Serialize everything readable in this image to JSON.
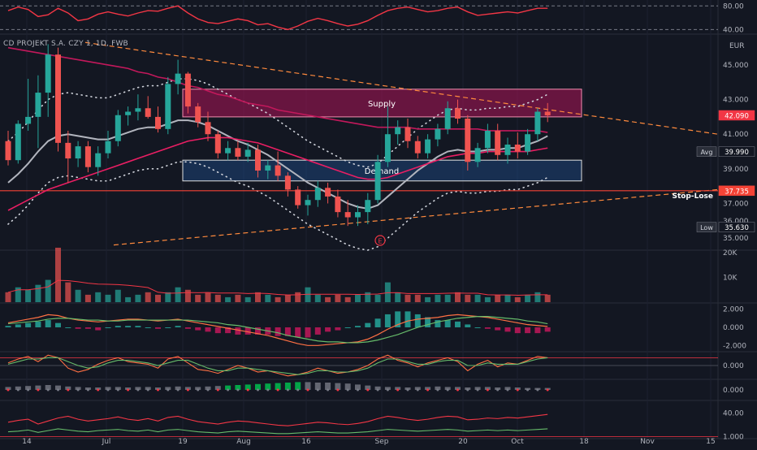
{
  "chart_data": {
    "type": "candlestick",
    "instrument_label": "CD PROJEKT S.A. CZY 1, 1D, FWB",
    "currency": "EUR",
    "colors": {
      "up": "#26a69a",
      "down": "#ef5350",
      "background": "#131722",
      "sma_fast": "#b2b5be",
      "sma_slow": "#e91e63",
      "stop_loss": "#f44336",
      "trendline": "#ff8a3d",
      "supply_zone": "#ad1457",
      "demand_zone": "#1e4d8c"
    },
    "x_tick_labels": [
      "14",
      "Jul",
      "19",
      "Aug",
      "16",
      "Sep",
      "20",
      "Oct",
      "18",
      "Nov",
      "15"
    ],
    "price_axis": {
      "range": [
        34.3,
        46.5
      ],
      "ticks": [
        "45.000",
        "43.000",
        "41.000",
        "39.000",
        "37.000",
        "36.000",
        "35.000"
      ],
      "tick_values": [
        45,
        43,
        41,
        39,
        37,
        36,
        35
      ]
    },
    "price_labels": [
      {
        "name": "last",
        "text": "42.090",
        "value": 42.09,
        "color": "#f23645"
      },
      {
        "name": "avg",
        "prefix": "Avg",
        "text": "39.990",
        "value": 39.99,
        "color": "#131722"
      },
      {
        "name": "stop",
        "text": "37.735",
        "value": 37.735,
        "color": "#f44336"
      },
      {
        "name": "low",
        "prefix": "Low",
        "text": "35.630",
        "value": 35.63,
        "color": "#131722"
      }
    ],
    "zones": [
      {
        "label": "Supply",
        "top": 43.6,
        "bottom": 42.0
      },
      {
        "label": "Demand",
        "top": 39.5,
        "bottom": 38.3
      }
    ],
    "stop_loss": {
      "label": "Stop-Lose",
      "value": 37.735
    },
    "event_marker": "E",
    "candles": [
      {
        "o": 40.6,
        "h": 41.2,
        "l": 39.2,
        "c": 39.5
      },
      {
        "o": 39.5,
        "h": 41.8,
        "l": 39.3,
        "c": 41.6
      },
      {
        "o": 41.6,
        "h": 44.2,
        "l": 41.2,
        "c": 42.0
      },
      {
        "o": 42.0,
        "h": 44.4,
        "l": 40.2,
        "c": 43.4
      },
      {
        "o": 43.4,
        "h": 46.2,
        "l": 42.0,
        "c": 45.6
      },
      {
        "o": 45.6,
        "h": 46.0,
        "l": 40.0,
        "c": 40.5
      },
      {
        "o": 40.5,
        "h": 41.2,
        "l": 38.2,
        "c": 39.6
      },
      {
        "o": 39.6,
        "h": 40.6,
        "l": 39.1,
        "c": 40.3
      },
      {
        "o": 40.3,
        "h": 40.6,
        "l": 38.8,
        "c": 39.1
      },
      {
        "o": 39.1,
        "h": 40.3,
        "l": 38.6,
        "c": 39.9
      },
      {
        "o": 39.9,
        "h": 41.2,
        "l": 39.6,
        "c": 40.6
      },
      {
        "o": 40.6,
        "h": 42.4,
        "l": 40.3,
        "c": 42.1
      },
      {
        "o": 42.1,
        "h": 42.6,
        "l": 41.5,
        "c": 42.3
      },
      {
        "o": 42.3,
        "h": 43.3,
        "l": 41.8,
        "c": 42.5
      },
      {
        "o": 42.5,
        "h": 43.2,
        "l": 41.9,
        "c": 42.0
      },
      {
        "o": 42.0,
        "h": 42.6,
        "l": 41.1,
        "c": 41.3
      },
      {
        "o": 41.3,
        "h": 44.3,
        "l": 41.0,
        "c": 43.9
      },
      {
        "o": 43.9,
        "h": 45.3,
        "l": 43.3,
        "c": 44.5
      },
      {
        "o": 44.5,
        "h": 44.6,
        "l": 42.2,
        "c": 42.6
      },
      {
        "o": 42.6,
        "h": 42.8,
        "l": 41.4,
        "c": 41.7
      },
      {
        "o": 41.7,
        "h": 42.3,
        "l": 40.6,
        "c": 41.0
      },
      {
        "o": 41.0,
        "h": 41.2,
        "l": 39.6,
        "c": 39.9
      },
      {
        "o": 39.9,
        "h": 40.6,
        "l": 39.5,
        "c": 40.2
      },
      {
        "o": 40.2,
        "h": 40.6,
        "l": 39.5,
        "c": 39.7
      },
      {
        "o": 39.7,
        "h": 40.5,
        "l": 39.4,
        "c": 40.1
      },
      {
        "o": 40.1,
        "h": 40.4,
        "l": 38.5,
        "c": 38.9
      },
      {
        "o": 38.9,
        "h": 39.5,
        "l": 38.4,
        "c": 39.2
      },
      {
        "o": 39.2,
        "h": 40.0,
        "l": 38.3,
        "c": 38.6
      },
      {
        "o": 38.6,
        "h": 38.8,
        "l": 37.4,
        "c": 37.8
      },
      {
        "o": 37.8,
        "h": 38.0,
        "l": 36.7,
        "c": 36.9
      },
      {
        "o": 36.9,
        "h": 37.5,
        "l": 36.3,
        "c": 37.2
      },
      {
        "o": 37.2,
        "h": 38.3,
        "l": 36.8,
        "c": 37.9
      },
      {
        "o": 37.9,
        "h": 38.2,
        "l": 37.0,
        "c": 37.4
      },
      {
        "o": 37.4,
        "h": 37.8,
        "l": 36.2,
        "c": 36.5
      },
      {
        "o": 36.5,
        "h": 37.2,
        "l": 35.7,
        "c": 36.2
      },
      {
        "o": 36.2,
        "h": 36.9,
        "l": 35.7,
        "c": 36.5
      },
      {
        "o": 36.5,
        "h": 37.6,
        "l": 35.8,
        "c": 37.2
      },
      {
        "o": 37.2,
        "h": 39.8,
        "l": 37.0,
        "c": 39.4
      },
      {
        "o": 39.4,
        "h": 42.6,
        "l": 39.1,
        "c": 41.0
      },
      {
        "o": 41.0,
        "h": 41.8,
        "l": 40.4,
        "c": 41.4
      },
      {
        "o": 41.4,
        "h": 41.9,
        "l": 40.2,
        "c": 40.6
      },
      {
        "o": 40.6,
        "h": 40.9,
        "l": 39.6,
        "c": 39.9
      },
      {
        "o": 39.9,
        "h": 41.0,
        "l": 39.6,
        "c": 40.7
      },
      {
        "o": 40.7,
        "h": 41.6,
        "l": 40.3,
        "c": 41.3
      },
      {
        "o": 41.3,
        "h": 42.9,
        "l": 41.0,
        "c": 42.5
      },
      {
        "o": 42.5,
        "h": 43.0,
        "l": 41.6,
        "c": 41.9
      },
      {
        "o": 41.9,
        "h": 42.1,
        "l": 38.9,
        "c": 39.4
      },
      {
        "o": 39.4,
        "h": 40.5,
        "l": 39.1,
        "c": 40.2
      },
      {
        "o": 40.2,
        "h": 41.6,
        "l": 39.9,
        "c": 41.2
      },
      {
        "o": 41.2,
        "h": 41.6,
        "l": 39.5,
        "c": 39.8
      },
      {
        "o": 39.8,
        "h": 40.8,
        "l": 39.3,
        "c": 40.4
      },
      {
        "o": 40.4,
        "h": 41.1,
        "l": 39.6,
        "c": 40.0
      },
      {
        "o": 40.0,
        "h": 41.3,
        "l": 39.8,
        "c": 41.0
      },
      {
        "o": 41.0,
        "h": 42.5,
        "l": 40.6,
        "c": 42.3
      },
      {
        "o": 42.3,
        "h": 42.8,
        "l": 41.7,
        "c": 42.09
      }
    ],
    "series": [
      {
        "name": "SMA fast",
        "color": "#b2b5be",
        "values": [
          38.2,
          38.7,
          39.3,
          40.0,
          40.6,
          40.9,
          41.0,
          40.9,
          40.8,
          40.7,
          40.7,
          40.9,
          41.1,
          41.3,
          41.4,
          41.4,
          41.6,
          41.8,
          41.8,
          41.7,
          41.5,
          41.2,
          40.9,
          40.6,
          40.4,
          40.1,
          39.8,
          39.4,
          39.0,
          38.6,
          38.2,
          37.9,
          37.6,
          37.3,
          37.0,
          36.8,
          36.7,
          36.9,
          37.4,
          37.9,
          38.4,
          38.9,
          39.3,
          39.7,
          40.0,
          40.1,
          40.0,
          40.0,
          40.1,
          40.1,
          40.2,
          40.2,
          40.4,
          40.6,
          40.9
        ]
      },
      {
        "name": "SMA slow",
        "color": "#e91e63",
        "values": [
          36.6,
          36.9,
          37.2,
          37.5,
          37.8,
          38.0,
          38.2,
          38.4,
          38.6,
          38.8,
          39.0,
          39.2,
          39.4,
          39.6,
          39.8,
          40.0,
          40.2,
          40.4,
          40.6,
          40.7,
          40.8,
          40.8,
          40.8,
          40.7,
          40.6,
          40.5,
          40.3,
          40.1,
          39.9,
          39.7,
          39.5,
          39.3,
          39.1,
          38.9,
          38.7,
          38.5,
          38.4,
          38.4,
          38.5,
          38.7,
          38.9,
          39.1,
          39.3,
          39.5,
          39.7,
          39.8,
          39.9,
          39.9,
          40.0,
          40.0,
          40.0,
          40.0,
          40.0,
          40.1,
          40.2
        ]
      },
      {
        "name": "MA long",
        "color": "#c2185b",
        "values": [
          46.0,
          45.9,
          45.8,
          45.7,
          45.6,
          45.5,
          45.4,
          45.3,
          45.2,
          45.1,
          45.0,
          44.9,
          44.8,
          44.6,
          44.5,
          44.3,
          44.2,
          44.0,
          43.8,
          43.7,
          43.5,
          43.3,
          43.2,
          43.0,
          42.8,
          42.7,
          42.6,
          42.4,
          42.3,
          42.2,
          42.1,
          42.0,
          41.9,
          41.8,
          41.7,
          41.6,
          41.5,
          41.4,
          41.4,
          41.4,
          41.4,
          41.3,
          41.3,
          41.3,
          41.3,
          41.3,
          41.3,
          41.3,
          41.2,
          41.2,
          41.2,
          41.2,
          41.2,
          41.2,
          41.1
        ]
      }
    ],
    "panes": [
      {
        "name": "volume",
        "ticks": [
          "20K",
          "10K"
        ],
        "tick_values": [
          20,
          10
        ],
        "range": [
          0,
          21
        ],
        "values": [
          4,
          6,
          5,
          7,
          9,
          22,
          8,
          5,
          3,
          4,
          3,
          5,
          2,
          3,
          4,
          3,
          4,
          6,
          5,
          3,
          4,
          3,
          2,
          3,
          2,
          4,
          3,
          2,
          3,
          4,
          6,
          3,
          2,
          3,
          2,
          3,
          4,
          3,
          8,
          4,
          3,
          3,
          2,
          3,
          3,
          4,
          3,
          3,
          2,
          3,
          3,
          2,
          3,
          4,
          3
        ]
      },
      {
        "name": "macd",
        "ticks": [
          "2.000",
          "0.000",
          "-2.000"
        ],
        "tick_values": [
          2,
          0,
          -2
        ],
        "range": [
          -2.6,
          2.6
        ],
        "line": [
          0.5,
          0.7,
          0.9,
          1.1,
          1.4,
          1.3,
          1.0,
          0.8,
          0.7,
          0.6,
          0.7,
          0.8,
          0.9,
          0.9,
          0.8,
          0.7,
          0.8,
          0.9,
          0.7,
          0.5,
          0.3,
          0.1,
          -0.1,
          -0.3,
          -0.5,
          -0.7,
          -0.9,
          -1.2,
          -1.5,
          -1.8,
          -2.0,
          -2.0,
          -1.9,
          -1.8,
          -1.7,
          -1.6,
          -1.3,
          -0.8,
          -0.2,
          0.3,
          0.7,
          0.9,
          1.0,
          1.1,
          1.3,
          1.4,
          1.3,
          1.2,
          1.1,
          0.9,
          0.7,
          0.5,
          0.3,
          0.2,
          0.1
        ],
        "signal": [
          0.4,
          0.5,
          0.6,
          0.7,
          0.9,
          1.0,
          1.0,
          0.9,
          0.8,
          0.8,
          0.7,
          0.7,
          0.8,
          0.8,
          0.8,
          0.8,
          0.8,
          0.8,
          0.8,
          0.7,
          0.6,
          0.5,
          0.3,
          0.2,
          0.0,
          -0.2,
          -0.4,
          -0.6,
          -0.9,
          -1.1,
          -1.3,
          -1.5,
          -1.6,
          -1.6,
          -1.7,
          -1.7,
          -1.6,
          -1.4,
          -1.1,
          -0.8,
          -0.4,
          0.0,
          0.3,
          0.6,
          0.8,
          1.0,
          1.1,
          1.2,
          1.2,
          1.1,
          1.0,
          0.9,
          0.7,
          0.6,
          0.4
        ]
      },
      {
        "name": "oscillator",
        "ticks": [
          "0.000"
        ],
        "tick_values": [
          0
        ],
        "range": [
          -1,
          1
        ],
        "line": [
          0.2,
          0.5,
          0.7,
          0.3,
          0.8,
          0.6,
          -0.2,
          -0.5,
          -0.3,
          0.1,
          0.4,
          0.6,
          0.3,
          0.2,
          0.1,
          -0.2,
          0.5,
          0.7,
          0.2,
          -0.3,
          -0.4,
          -0.6,
          -0.3,
          0.0,
          -0.2,
          -0.5,
          -0.4,
          -0.6,
          -0.8,
          -0.7,
          -0.5,
          -0.2,
          -0.4,
          -0.6,
          -0.5,
          -0.3,
          0.0,
          0.5,
          0.8,
          0.4,
          0.2,
          -0.1,
          0.2,
          0.4,
          0.6,
          0.3,
          -0.4,
          0.1,
          0.4,
          -0.1,
          0.2,
          0.1,
          0.4,
          0.7,
          0.6
        ],
        "signal": [
          0.1,
          0.3,
          0.5,
          0.5,
          0.6,
          0.6,
          0.3,
          0.0,
          -0.2,
          -0.1,
          0.2,
          0.4,
          0.4,
          0.3,
          0.2,
          0.0,
          0.2,
          0.4,
          0.4,
          0.1,
          -0.2,
          -0.4,
          -0.4,
          -0.2,
          -0.2,
          -0.3,
          -0.4,
          -0.5,
          -0.6,
          -0.7,
          -0.6,
          -0.4,
          -0.4,
          -0.5,
          -0.5,
          -0.4,
          -0.2,
          0.2,
          0.5,
          0.5,
          0.3,
          0.1,
          0.1,
          0.3,
          0.4,
          0.4,
          0.0,
          0.0,
          0.2,
          0.1,
          0.1,
          0.1,
          0.3,
          0.5,
          0.6
        ]
      },
      {
        "name": "momentum",
        "ticks": [
          "0.000"
        ],
        "tick_values": [
          0
        ],
        "range": [
          -1,
          1
        ],
        "values": [
          0.3,
          0.35,
          0.4,
          0.45,
          0.5,
          0.45,
          0.35,
          0.3,
          0.25,
          0.25,
          0.3,
          0.3,
          0.25,
          0.3,
          0.3,
          0.25,
          0.3,
          0.35,
          0.3,
          0.3,
          0.35,
          0.4,
          0.45,
          0.5,
          0.55,
          0.6,
          0.65,
          0.7,
          0.75,
          0.8,
          0.8,
          0.75,
          0.75,
          0.7,
          0.65,
          0.55,
          0.45,
          0.35,
          0.3,
          0.3,
          0.25,
          0.3,
          0.3,
          0.35,
          0.3,
          0.3,
          0.25,
          0.3,
          0.3,
          0.25,
          0.3,
          0.25,
          0.2,
          0.2,
          0.2
        ]
      },
      {
        "name": "rsi-bottom",
        "ticks": [
          "40.00",
          "1.000"
        ],
        "tick_values": [
          40,
          1
        ],
        "range": [
          0.3,
          60
        ],
        "line_a": [
          25,
          28,
          30,
          22,
          27,
          32,
          35,
          30,
          27,
          29,
          31,
          34,
          30,
          28,
          31,
          27,
          33,
          35,
          30,
          26,
          24,
          22,
          25,
          27,
          26,
          24,
          22,
          20,
          19,
          21,
          23,
          25,
          24,
          22,
          21,
          23,
          26,
          31,
          35,
          33,
          30,
          28,
          30,
          33,
          35,
          34,
          29,
          30,
          32,
          31,
          33,
          32,
          34,
          36,
          38
        ],
        "line_b": [
          9,
          10,
          12,
          8,
          11,
          14,
          12,
          10,
          9,
          11,
          12,
          13,
          11,
          10,
          12,
          9,
          12,
          13,
          11,
          9,
          8,
          7,
          9,
          10,
          9,
          8,
          7,
          6,
          6,
          7,
          8,
          9,
          8,
          7,
          7,
          8,
          9,
          11,
          13,
          12,
          11,
          10,
          11,
          12,
          13,
          12,
          10,
          11,
          12,
          11,
          12,
          11,
          12,
          13,
          14
        ]
      }
    ],
    "top_pane": {
      "name": "rsi-top",
      "ticks": [
        "80.00",
        "40.00"
      ],
      "tick_values": [
        80,
        40
      ],
      "range": [
        35,
        90
      ],
      "values": [
        72,
        78,
        74,
        62,
        65,
        76,
        68,
        55,
        58,
        66,
        70,
        66,
        63,
        68,
        72,
        71,
        76,
        80,
        68,
        58,
        52,
        50,
        54,
        58,
        55,
        48,
        50,
        44,
        40,
        46,
        54,
        59,
        55,
        50,
        46,
        49,
        55,
        64,
        72,
        76,
        78,
        74,
        70,
        72,
        76,
        78,
        70,
        64,
        66,
        68,
        70,
        68,
        72,
        76,
        76
      ]
    }
  }
}
